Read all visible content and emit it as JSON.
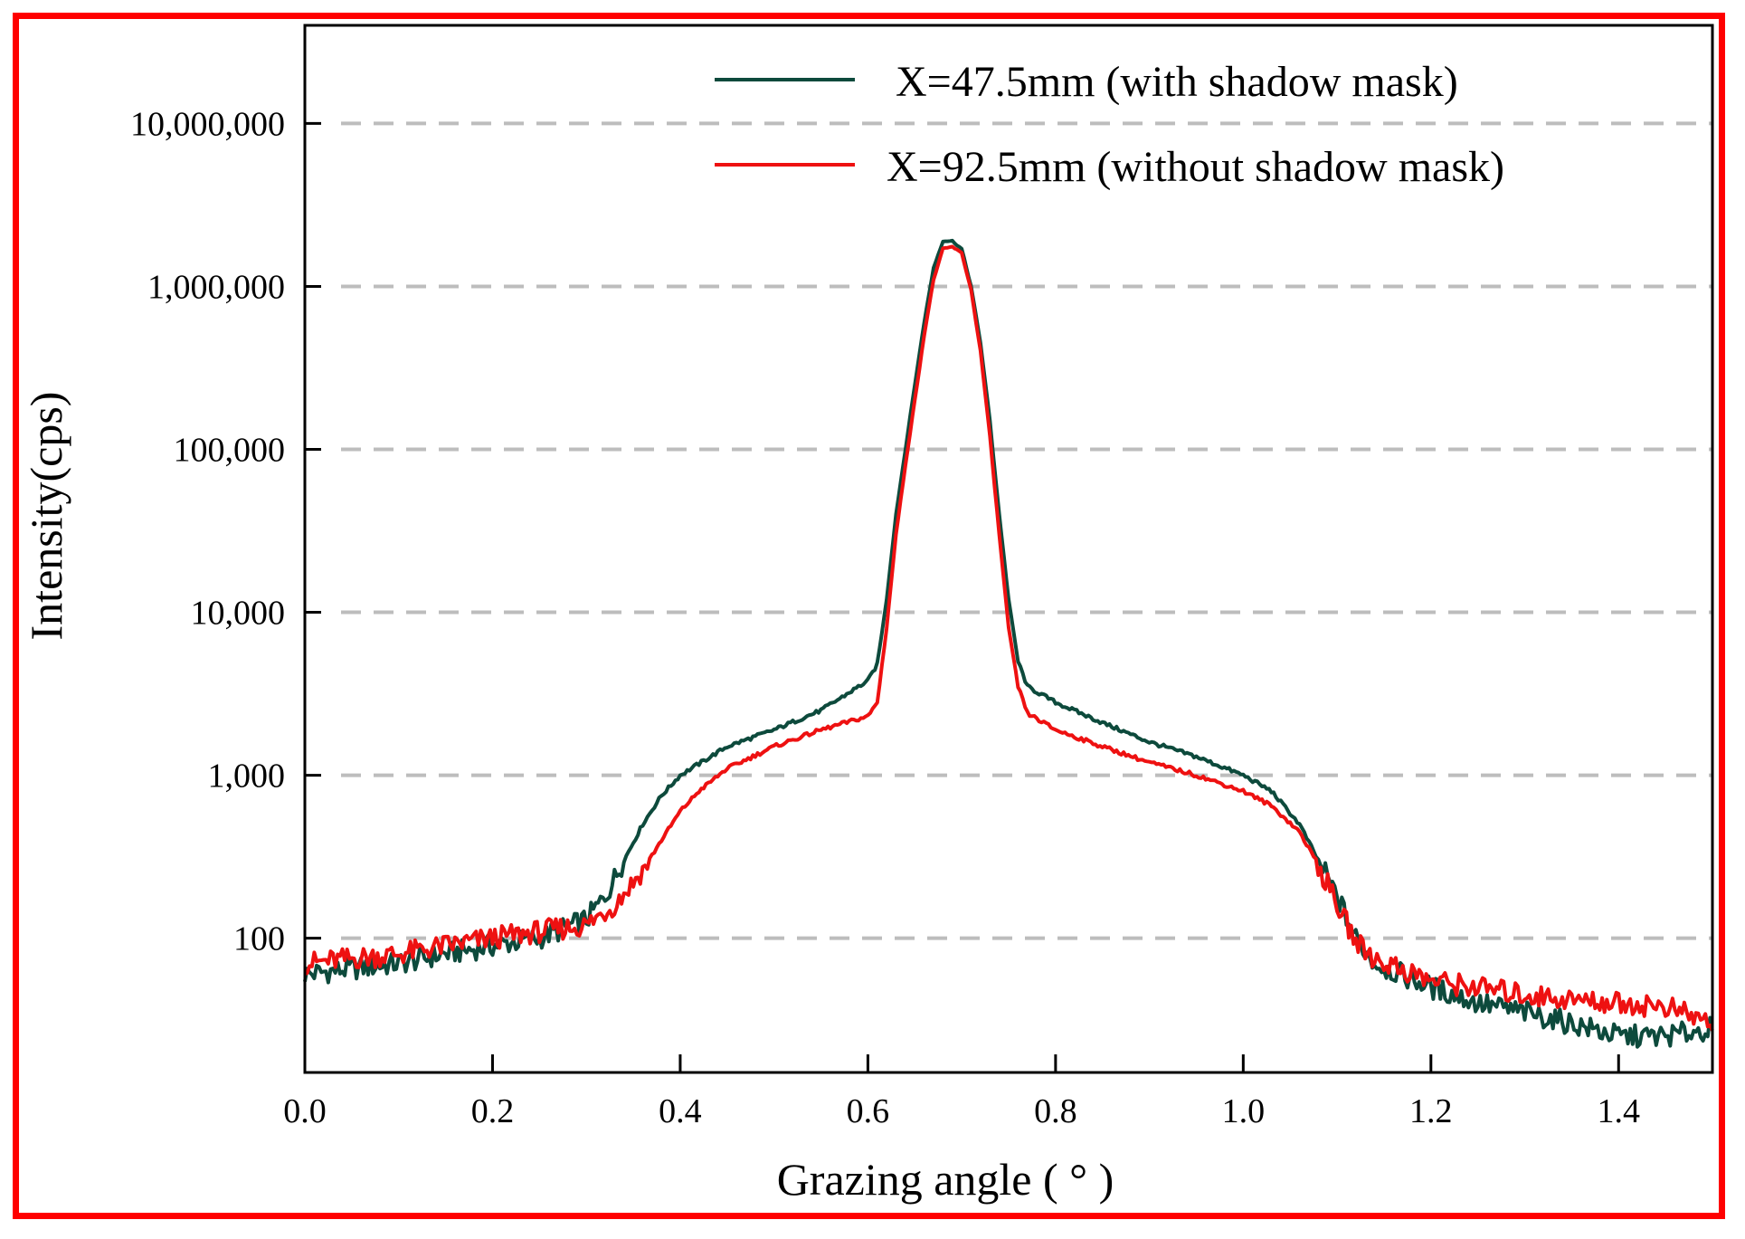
{
  "chart_data": {
    "type": "line",
    "title": "",
    "xlabel": "Grazing angle ( ° )",
    "ylabel": "Intensity(cps)",
    "xlim": [
      0.0,
      1.5
    ],
    "ylim": [
      15,
      40000000
    ],
    "yscale": "log",
    "grid": "horizontal dashed",
    "legend_position": "top-right",
    "x_ticks": [
      0.0,
      0.2,
      0.4,
      0.6,
      0.8,
      1.0,
      1.2,
      1.4
    ],
    "x_tick_labels": [
      "0.0",
      "0.2",
      "0.4",
      "0.6",
      "0.8",
      "1.0",
      "1.2",
      "1.4"
    ],
    "y_ticks": [
      100,
      1000,
      10000,
      100000,
      1000000,
      10000000
    ],
    "y_tick_labels": [
      "100",
      "1,000",
      "10,000",
      "100,000",
      "1,000,000",
      "10,000,000"
    ],
    "series": [
      {
        "name": "X=47.5mm (with shadow mask)",
        "color": "#0d4a3c",
        "x": [
          0.0,
          0.05,
          0.1,
          0.15,
          0.2,
          0.25,
          0.3,
          0.32,
          0.34,
          0.36,
          0.38,
          0.4,
          0.45,
          0.5,
          0.55,
          0.6,
          0.61,
          0.62,
          0.63,
          0.64,
          0.65,
          0.66,
          0.67,
          0.68,
          0.69,
          0.7,
          0.71,
          0.72,
          0.73,
          0.74,
          0.75,
          0.76,
          0.77,
          0.8,
          0.85,
          0.9,
          0.95,
          1.0,
          1.03,
          1.06,
          1.08,
          1.1,
          1.12,
          1.14,
          1.2,
          1.25,
          1.3,
          1.35,
          1.4,
          1.45,
          1.5
        ],
        "y": [
          60,
          65,
          70,
          80,
          90,
          100,
          130,
          180,
          300,
          500,
          750,
          1000,
          1500,
          1900,
          2500,
          3800,
          4800,
          12000,
          40000,
          100000,
          250000,
          600000,
          1300000,
          1900000,
          1900000,
          1700000,
          1000000,
          450000,
          150000,
          40000,
          12000,
          5000,
          3500,
          2800,
          2100,
          1600,
          1300,
          1000,
          800,
          500,
          300,
          180,
          100,
          70,
          50,
          40,
          35,
          30,
          25,
          25,
          28
        ]
      },
      {
        "name": "X=92.5mm (without shadow mask)",
        "color": "#ee1111",
        "x": [
          0.0,
          0.05,
          0.1,
          0.15,
          0.2,
          0.25,
          0.3,
          0.33,
          0.36,
          0.38,
          0.4,
          0.42,
          0.45,
          0.5,
          0.55,
          0.6,
          0.61,
          0.62,
          0.63,
          0.64,
          0.65,
          0.66,
          0.67,
          0.68,
          0.69,
          0.7,
          0.71,
          0.72,
          0.73,
          0.74,
          0.75,
          0.76,
          0.77,
          0.8,
          0.85,
          0.9,
          0.95,
          1.0,
          1.03,
          1.06,
          1.08,
          1.1,
          1.12,
          1.14,
          1.2,
          1.25,
          1.3,
          1.35,
          1.4,
          1.45,
          1.5
        ],
        "y": [
          70,
          75,
          80,
          90,
          100,
          110,
          120,
          160,
          260,
          400,
          600,
          800,
          1100,
          1500,
          1900,
          2300,
          2800,
          8000,
          30000,
          80000,
          200000,
          500000,
          1100000,
          1700000,
          1750000,
          1600000,
          950000,
          400000,
          120000,
          30000,
          8000,
          3500,
          2400,
          1900,
          1500,
          1200,
          1000,
          800,
          650,
          450,
          280,
          160,
          95,
          75,
          55,
          50,
          45,
          42,
          40,
          38,
          30
        ]
      }
    ]
  }
}
